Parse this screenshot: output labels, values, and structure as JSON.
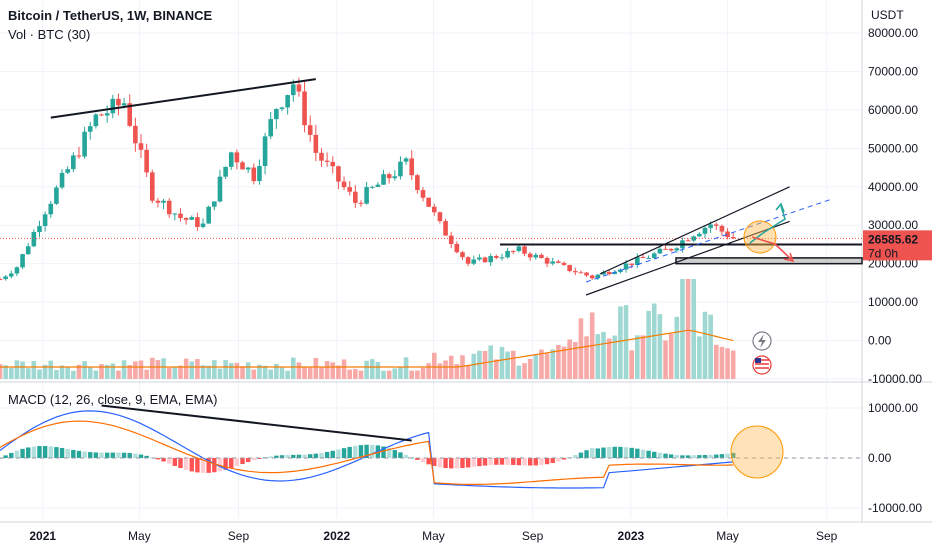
{
  "header": {
    "title": "Bitcoin / TetherUS, 1W, BINANCE",
    "volume_label": "Vol · BTC (30)",
    "macd_label": "MACD (12, 26, close, 9, EMA, EMA)"
  },
  "price_axis": {
    "currency": "USDT",
    "ticks": [
      "80000.00",
      "70000.00",
      "60000.00",
      "50000.00",
      "40000.00",
      "30000.00",
      "20000.00",
      "10000.00",
      "0.00",
      "-10000.00"
    ]
  },
  "macd_axis": {
    "ticks": [
      "10000.00",
      "0.00",
      "-10000.00"
    ]
  },
  "time_axis": {
    "labels": [
      {
        "text": "2021",
        "year": true
      },
      {
        "text": "May",
        "year": false
      },
      {
        "text": "Sep",
        "year": false
      },
      {
        "text": "2022",
        "year": true
      },
      {
        "text": "May",
        "year": false
      },
      {
        "text": "Sep",
        "year": false
      },
      {
        "text": "2023",
        "year": true
      },
      {
        "text": "May",
        "year": false
      },
      {
        "text": "Sep",
        "year": false
      }
    ]
  },
  "price_tag": {
    "value": "26585.62",
    "countdown": "7d 0h"
  },
  "colors": {
    "up": "#26a69a",
    "down": "#ef5350",
    "vol_up": "#9fd8d2",
    "vol_down": "#f7a9a7",
    "ma": "#f57c00",
    "macd": "#2962ff",
    "signal": "#ff6d00",
    "hist_up_strong": "#26a69a",
    "hist_up_weak": "#b2dfdb",
    "hist_dn_strong": "#ff5252",
    "hist_dn_weak": "#ffcdd2",
    "price_line": "#ef5350",
    "channel": "#131722",
    "circle": "#ffb74d"
  },
  "icons": [
    "lightning-icon",
    "us-flag-icon"
  ],
  "chart_data": {
    "type": "candlestick",
    "title": "Bitcoin / TetherUS, 1W, BINANCE",
    "interval": "1W",
    "price_ylim": [
      -10000,
      80000
    ],
    "macd_ylim": [
      -10000,
      10000
    ],
    "x_range": [
      "2020-11-09",
      "2023-09-25"
    ],
    "price_series_weekly_close": [
      {
        "date": "2020-11-09",
        "close": 16000
      },
      {
        "date": "2020-11-30",
        "close": 19200
      },
      {
        "date": "2021-01-04",
        "close": 34000
      },
      {
        "date": "2021-02-08",
        "close": 47000
      },
      {
        "date": "2021-03-08",
        "close": 58000
      },
      {
        "date": "2021-04-12",
        "close": 62000
      },
      {
        "date": "2021-05-17",
        "close": 38000
      },
      {
        "date": "2021-06-21",
        "close": 32000
      },
      {
        "date": "2021-07-19",
        "close": 30000
      },
      {
        "date": "2021-08-23",
        "close": 49000
      },
      {
        "date": "2021-09-20",
        "close": 43000
      },
      {
        "date": "2021-10-18",
        "close": 61000
      },
      {
        "date": "2021-11-08",
        "close": 67000
      },
      {
        "date": "2021-12-06",
        "close": 49000
      },
      {
        "date": "2022-01-24",
        "close": 36000
      },
      {
        "date": "2022-03-28",
        "close": 46000
      },
      {
        "date": "2022-05-09",
        "close": 30000
      },
      {
        "date": "2022-06-13",
        "close": 20000
      },
      {
        "date": "2022-08-15",
        "close": 23500
      },
      {
        "date": "2022-10-10",
        "close": 19000
      },
      {
        "date": "2022-11-14",
        "close": 16500
      },
      {
        "date": "2023-01-09",
        "close": 20800
      },
      {
        "date": "2023-02-20",
        "close": 24000
      },
      {
        "date": "2023-03-20",
        "close": 28000
      },
      {
        "date": "2023-04-10",
        "close": 30300
      },
      {
        "date": "2023-05-08",
        "close": 26585
      }
    ],
    "last_price": 26585.62,
    "annotations": [
      {
        "type": "trendline",
        "panel": "price",
        "from": {
          "date": "2021-01-11",
          "value": 58000
        },
        "to": {
          "date": "2021-12-06",
          "value": 68000
        }
      },
      {
        "type": "trendline",
        "panel": "macd",
        "from": {
          "date": "2021-03-15",
          "value": 10500
        },
        "to": {
          "date": "2022-04-04",
          "value": 3500
        }
      },
      {
        "type": "horizontal_line",
        "panel": "price",
        "value": 25000
      },
      {
        "type": "rectangle",
        "panel": "price",
        "from_value": 20000,
        "to_value": 21500
      },
      {
        "type": "ascending_channel",
        "panel": "price",
        "lower_from": {
          "date": "2022-10-17",
          "value": 14000
        },
        "lower_to": {
          "date": "2023-07-17",
          "value": 31000
        },
        "upper_from": {
          "date": "2022-12-26",
          "value": 20500
        },
        "upper_to": {
          "date": "2023-07-17",
          "value": 40000
        }
      },
      {
        "type": "arrow",
        "panel": "price",
        "color": "#26a69a",
        "direction": "up"
      },
      {
        "type": "arrow",
        "panel": "price",
        "color": "#ef5350",
        "direction": "down"
      },
      {
        "type": "circle",
        "panel": "price",
        "color": "#ffb74d"
      },
      {
        "type": "circle",
        "panel": "macd",
        "color": "#ffb74d"
      }
    ],
    "volume_ylim": [
      0,
      2400000
    ],
    "grid": true
  }
}
